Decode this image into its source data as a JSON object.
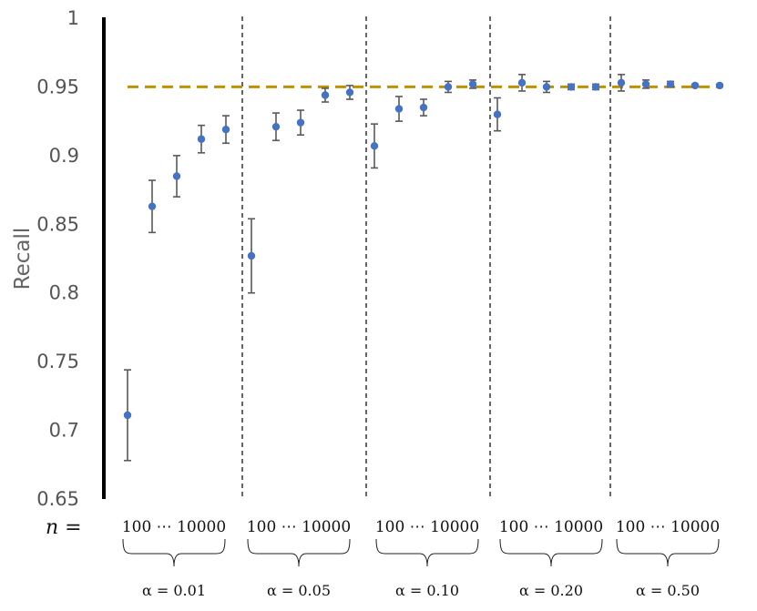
{
  "chart_data": {
    "type": "scatter",
    "ylabel": "Recall",
    "ylim": [
      0.65,
      1
    ],
    "yticks": [
      "0.65",
      "0.7",
      "0.75",
      "0.8",
      "0.85",
      "0.9",
      "0.95",
      "1"
    ],
    "reference_line": 0.95,
    "row_label": "n =",
    "groups": [
      {
        "alpha_label": "α = 0.01",
        "range_label": "100 ⋯ 10000",
        "points": [
          {
            "y": 0.711,
            "lo": 0.678,
            "hi": 0.744
          },
          {
            "y": 0.863,
            "lo": 0.844,
            "hi": 0.882
          },
          {
            "y": 0.885,
            "lo": 0.87,
            "hi": 0.9
          },
          {
            "y": 0.912,
            "lo": 0.902,
            "hi": 0.922
          },
          {
            "y": 0.919,
            "lo": 0.909,
            "hi": 0.929
          }
        ]
      },
      {
        "alpha_label": "α = 0.05",
        "range_label": "100 ⋯ 10000",
        "points": [
          {
            "y": 0.827,
            "lo": 0.8,
            "hi": 0.854
          },
          {
            "y": 0.921,
            "lo": 0.911,
            "hi": 0.931
          },
          {
            "y": 0.924,
            "lo": 0.915,
            "hi": 0.933
          },
          {
            "y": 0.944,
            "lo": 0.939,
            "hi": 0.949
          },
          {
            "y": 0.946,
            "lo": 0.941,
            "hi": 0.951
          }
        ]
      },
      {
        "alpha_label": "α = 0.10",
        "range_label": "100 ⋯ 10000",
        "points": [
          {
            "y": 0.907,
            "lo": 0.891,
            "hi": 0.923
          },
          {
            "y": 0.934,
            "lo": 0.925,
            "hi": 0.943
          },
          {
            "y": 0.935,
            "lo": 0.929,
            "hi": 0.941
          },
          {
            "y": 0.95,
            "lo": 0.946,
            "hi": 0.954
          },
          {
            "y": 0.952,
            "lo": 0.949,
            "hi": 0.955
          }
        ]
      },
      {
        "alpha_label": "α = 0.20",
        "range_label": "100 ⋯ 10000",
        "points": [
          {
            "y": 0.93,
            "lo": 0.918,
            "hi": 0.942
          },
          {
            "y": 0.953,
            "lo": 0.947,
            "hi": 0.959
          },
          {
            "y": 0.95,
            "lo": 0.946,
            "hi": 0.954
          },
          {
            "y": 0.95,
            "lo": 0.948,
            "hi": 0.952
          },
          {
            "y": 0.95,
            "lo": 0.948,
            "hi": 0.952
          }
        ]
      },
      {
        "alpha_label": "α = 0.50",
        "range_label": "100 ⋯ 10000",
        "points": [
          {
            "y": 0.953,
            "lo": 0.947,
            "hi": 0.959
          },
          {
            "y": 0.952,
            "lo": 0.949,
            "hi": 0.955
          },
          {
            "y": 0.952,
            "lo": 0.95,
            "hi": 0.954
          },
          {
            "y": 0.951,
            "lo": 0.95,
            "hi": 0.952
          },
          {
            "y": 0.951,
            "lo": 0.95,
            "hi": 0.952
          }
        ]
      }
    ],
    "colors": {
      "points": "#4472C4",
      "error_bars": "#595959",
      "reference": "#BF9000",
      "axis": "#000000",
      "separator": "#000000"
    }
  }
}
